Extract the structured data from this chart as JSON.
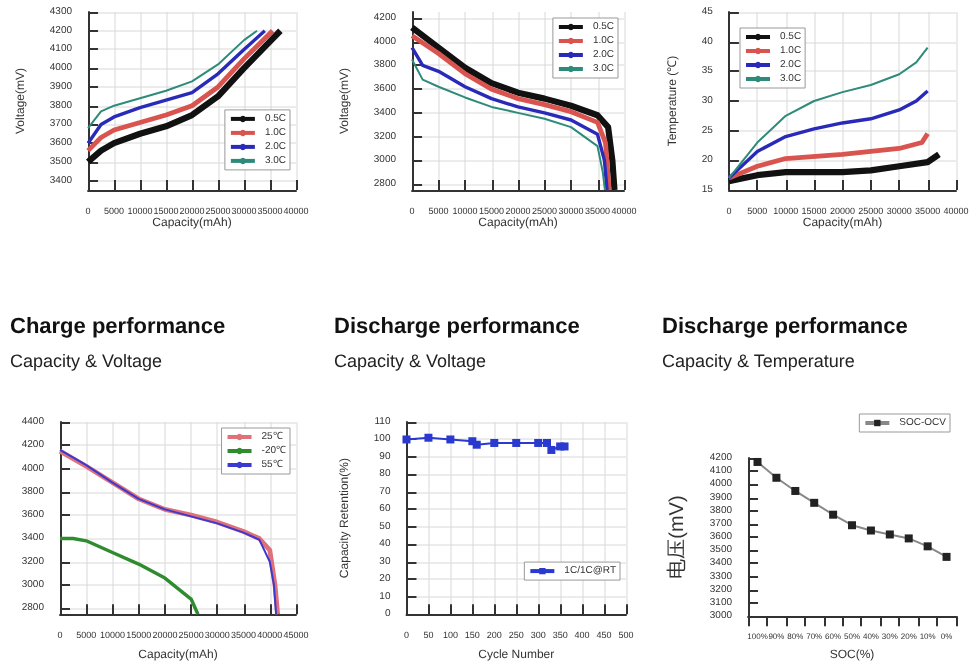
{
  "chart_data": [
    {
      "type": "line",
      "title": "Charge performance",
      "subtitle": "Capacity & Voltage",
      "xlabel": "Capacity(mAh)",
      "ylabel": "Voltage(mV)",
      "xlim": [
        0,
        40000
      ],
      "xticks": [
        0,
        5000,
        10000,
        15000,
        20000,
        25000,
        30000,
        35000,
        40000
      ],
      "ylim": [
        3350,
        4300
      ],
      "yticks": [
        3400,
        3500,
        3600,
        3700,
        3800,
        3900,
        4000,
        4100,
        4200,
        4300
      ],
      "grid": true,
      "legend": "bottom right",
      "series": [
        {
          "name": "0.5C",
          "color": "#111111",
          "x": [
            0,
            2500,
            5000,
            10000,
            15000,
            20000,
            25000,
            30000,
            37000
          ],
          "values": [
            3500,
            3560,
            3600,
            3650,
            3690,
            3750,
            3850,
            4000,
            4200
          ]
        },
        {
          "name": "1.0C",
          "color": "#d9534f",
          "x": [
            0,
            2500,
            5000,
            10000,
            15000,
            20000,
            25000,
            30000,
            35500
          ],
          "values": [
            3560,
            3630,
            3670,
            3710,
            3750,
            3800,
            3900,
            4050,
            4200
          ]
        },
        {
          "name": "2.0C",
          "color": "#2a2ab8",
          "x": [
            0,
            2500,
            5000,
            10000,
            15000,
            20000,
            25000,
            30000,
            34000
          ],
          "values": [
            3600,
            3700,
            3740,
            3790,
            3830,
            3870,
            3970,
            4100,
            4200
          ]
        },
        {
          "name": "3.0C",
          "color": "#2e8b7a",
          "x": [
            0,
            2500,
            5000,
            10000,
            15000,
            20000,
            25000,
            30000,
            32500
          ],
          "values": [
            3680,
            3770,
            3800,
            3840,
            3880,
            3930,
            4020,
            4150,
            4200
          ]
        }
      ]
    },
    {
      "type": "line",
      "title": "Discharge performance",
      "subtitle": "Capacity & Voltage",
      "xlabel": "Capacity(mAh)",
      "ylabel": "Voltage(mV)",
      "xlim": [
        0,
        40000
      ],
      "xticks": [
        0,
        5000,
        10000,
        15000,
        20000,
        25000,
        30000,
        35000,
        40000
      ],
      "ylim": [
        2750,
        4250
      ],
      "yticks": [
        2800,
        3000,
        3200,
        3400,
        3600,
        3800,
        4000,
        4200
      ],
      "grid": true,
      "legend": "top right",
      "series": [
        {
          "name": "0.5C",
          "color": "#111111",
          "x": [
            0,
            5000,
            10000,
            15000,
            20000,
            25000,
            30000,
            35000,
            37000,
            37800,
            38200
          ],
          "values": [
            4120,
            3950,
            3780,
            3650,
            3570,
            3520,
            3460,
            3380,
            3280,
            3000,
            2750
          ]
        },
        {
          "name": "1.0C",
          "color": "#d9534f",
          "x": [
            0,
            5000,
            10000,
            15000,
            20000,
            25000,
            30000,
            35000,
            36500,
            37200
          ],
          "values": [
            4050,
            3900,
            3730,
            3600,
            3520,
            3470,
            3410,
            3320,
            3150,
            2750
          ]
        },
        {
          "name": "2.0C",
          "color": "#2a2ab8",
          "x": [
            0,
            2000,
            5000,
            10000,
            15000,
            20000,
            25000,
            30000,
            35000,
            36300,
            36800
          ],
          "values": [
            3950,
            3800,
            3750,
            3620,
            3520,
            3450,
            3400,
            3340,
            3220,
            3000,
            2750
          ]
        },
        {
          "name": "3.0C",
          "color": "#2e8b7a",
          "x": [
            0,
            2000,
            5000,
            10000,
            15000,
            20000,
            25000,
            30000,
            35000,
            36000,
            36400
          ],
          "values": [
            3850,
            3680,
            3620,
            3530,
            3450,
            3400,
            3350,
            3280,
            3120,
            2900,
            2750
          ]
        }
      ]
    },
    {
      "type": "line",
      "title": "Discharge performance",
      "subtitle": "Capacity & Temperature",
      "xlabel": "Capacity(mAh)",
      "ylabel": "Temperature (℃)",
      "xlim": [
        0,
        40000
      ],
      "xticks": [
        0,
        5000,
        10000,
        15000,
        20000,
        25000,
        30000,
        35000,
        40000
      ],
      "ylim": [
        15,
        45
      ],
      "yticks": [
        15,
        20,
        25,
        30,
        35,
        40,
        45
      ],
      "grid": true,
      "legend": "top left",
      "series": [
        {
          "name": "0.5C",
          "color": "#111111",
          "x": [
            0,
            5000,
            10000,
            20000,
            25000,
            30000,
            35000,
            37000
          ],
          "values": [
            16.5,
            17.5,
            18,
            18,
            18.3,
            19,
            19.7,
            21
          ]
        },
        {
          "name": "1.0C",
          "color": "#d9534f",
          "x": [
            0,
            5000,
            10000,
            20000,
            25000,
            30000,
            34000,
            35000
          ],
          "values": [
            17,
            19,
            20.3,
            21,
            21.5,
            22,
            23,
            24.5
          ]
        },
        {
          "name": "2.0C",
          "color": "#2a2ab8",
          "x": [
            0,
            5000,
            10000,
            15000,
            20000,
            25000,
            30000,
            33000,
            35000
          ],
          "values": [
            17,
            21.5,
            24,
            25.3,
            26.3,
            27,
            28.5,
            30,
            31.7
          ]
        },
        {
          "name": "3.0C",
          "color": "#2e8b7a",
          "x": [
            0,
            5000,
            10000,
            15000,
            20000,
            25000,
            30000,
            33000,
            35000
          ],
          "values": [
            17,
            23,
            27.5,
            30,
            31.5,
            32.7,
            34.5,
            36.5,
            39
          ]
        }
      ]
    },
    {
      "type": "line",
      "xlabel": "Capacity(mAh)",
      "xlim": [
        0,
        45000
      ],
      "xticks": [
        0,
        5000,
        10000,
        15000,
        20000,
        25000,
        30000,
        35000,
        40000,
        45000
      ],
      "ylim": [
        2750,
        4400
      ],
      "yticks": [
        2800,
        3000,
        3200,
        3400,
        3600,
        3800,
        4000,
        4200,
        4400
      ],
      "grid": true,
      "legend": "top right",
      "series": [
        {
          "name": "25℃",
          "color": "#e0707a",
          "x": [
            0,
            5000,
            10000,
            15000,
            20000,
            25000,
            30000,
            35000,
            38000,
            40000,
            41000,
            41500
          ],
          "values": [
            4150,
            4020,
            3880,
            3740,
            3650,
            3600,
            3540,
            3460,
            3400,
            3300,
            3000,
            2750
          ]
        },
        {
          "name": "-20℃",
          "color": "#2e8b2e",
          "x": [
            0,
            2500,
            5000,
            10000,
            15000,
            20000,
            25000,
            26300
          ],
          "values": [
            3400,
            3400,
            3380,
            3280,
            3180,
            3060,
            2880,
            2750
          ]
        },
        {
          "name": "55℃",
          "color": "#3a3ad0",
          "x": [
            0,
            5000,
            10000,
            15000,
            20000,
            25000,
            30000,
            35000,
            38000,
            40000,
            40800,
            41200
          ],
          "values": [
            4160,
            4030,
            3880,
            3740,
            3650,
            3590,
            3530,
            3450,
            3390,
            3200,
            3000,
            2750
          ]
        }
      ]
    },
    {
      "type": "line",
      "xlabel": "Cycle Number",
      "ylabel": "Capacity Retention(%)",
      "xlim": [
        0,
        500
      ],
      "xticks": [
        0,
        50,
        100,
        150,
        200,
        250,
        300,
        350,
        400,
        450,
        500
      ],
      "ylim": [
        0,
        110
      ],
      "yticks": [
        0,
        10,
        20,
        30,
        40,
        50,
        60,
        70,
        80,
        90,
        100,
        110
      ],
      "grid": true,
      "legend": "right",
      "marker": "square",
      "series": [
        {
          "name": "1C/1C@RT",
          "color": "#2a3ad0",
          "x": [
            0,
            50,
            100,
            150,
            160,
            200,
            250,
            300,
            320,
            330,
            350,
            360
          ],
          "values": [
            100,
            101,
            100,
            99,
            97,
            98,
            98,
            98,
            98,
            94,
            96,
            96
          ]
        }
      ]
    },
    {
      "type": "line",
      "xlabel": "SOC(%)",
      "ylabel": "电压(mV)",
      "categories": [
        "100%",
        "90%",
        "80%",
        "70%",
        "60%",
        "50%",
        "40%",
        "30%",
        "20%",
        "10%",
        "0%"
      ],
      "ylim": [
        3000,
        4200
      ],
      "yticks": [
        3000,
        3100,
        3200,
        3300,
        3400,
        3500,
        3600,
        3700,
        3800,
        3900,
        4000,
        4100,
        4200
      ],
      "grid": false,
      "legend": "top right",
      "marker": "square",
      "series": [
        {
          "name": "SOC-OCV",
          "color": "#222222",
          "values": [
            4170,
            4050,
            3950,
            3860,
            3770,
            3690,
            3650,
            3620,
            3590,
            3530,
            3450
          ]
        }
      ]
    }
  ]
}
